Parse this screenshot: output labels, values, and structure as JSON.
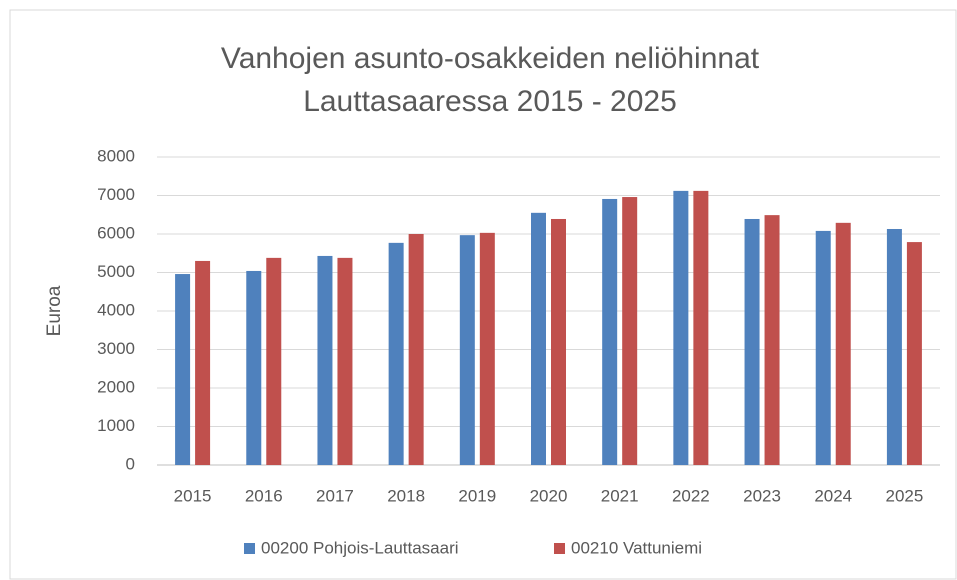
{
  "chart_data": {
    "type": "bar",
    "title": [
      "Vanhojen asunto-osakkeiden neliöhinnat",
      "Lauttasaaressa 2015 - 2025"
    ],
    "y_label": "Euroa",
    "categories": [
      "2015",
      "2016",
      "2017",
      "2018",
      "2019",
      "2020",
      "2021",
      "2022",
      "2023",
      "2024",
      "2025"
    ],
    "series": [
      {
        "name": "00200 Pohjois-Lauttasaari",
        "color": "#4f81bd",
        "values": [
          4960,
          5040,
          5430,
          5770,
          5970,
          6550,
          6910,
          7120,
          6390,
          6080,
          6130
        ]
      },
      {
        "name": "00210 Vattuniemi",
        "color": "#c0504d",
        "values": [
          5300,
          5380,
          5380,
          6000,
          6030,
          6390,
          6960,
          7120,
          6490,
          6290,
          5790
        ]
      }
    ],
    "ylim": [
      0,
      8000
    ],
    "yticks": [
      0,
      1000,
      2000,
      3000,
      4000,
      5000,
      6000,
      7000,
      8000
    ],
    "grid": true,
    "legend": "bottom"
  }
}
